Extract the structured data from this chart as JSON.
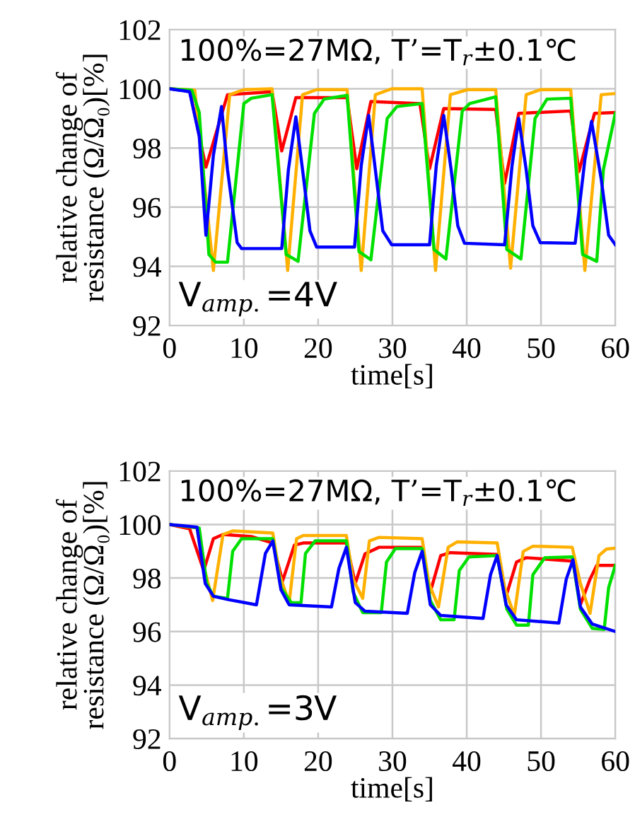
{
  "chart_data": [
    {
      "type": "line",
      "xlabel": "time[s]",
      "ylabel": "relative change of\nresistance (Ω/Ω₀)[%]",
      "annotations": [
        "100%=27MΩ, T’=T$_{r}$±0.1℃",
        "V$_{amp.}$=4V"
      ],
      "xlim": [
        0,
        60
      ],
      "ylim": [
        92,
        102
      ],
      "xticks": [
        0,
        10,
        20,
        30,
        40,
        50,
        60
      ],
      "yticks": [
        92,
        94,
        96,
        98,
        100,
        102
      ],
      "grid": true,
      "series": [
        {
          "color": "#ff0000",
          "x": [
            0,
            2.7,
            4.9,
            7.8,
            13.8,
            15.1,
            17,
            23.9,
            25.2,
            27.1,
            33.7,
            35,
            36.9,
            43.9,
            45.1,
            47,
            54,
            55.1,
            57.2,
            60
          ],
          "values": [
            100,
            99.95,
            97.35,
            99.8,
            99.9,
            97.9,
            99.7,
            99.7,
            97.3,
            99.57,
            99.5,
            97.3,
            99.33,
            99.3,
            96.8,
            99.17,
            99.25,
            97.2,
            99.17,
            99.2
          ]
        },
        {
          "color": "#ffb000",
          "x": [
            0,
            3.4,
            5.9,
            8.1,
            10,
            13.8,
            15.9,
            17.9,
            19.8,
            23.9,
            25.8,
            27.7,
            29.9,
            34,
            35.8,
            37.8,
            40.1,
            43.9,
            45.9,
            48,
            49.9,
            54,
            55.9,
            58.1,
            60
          ],
          "values": [
            100,
            99.95,
            93.86,
            99.8,
            99.97,
            100,
            93.86,
            99.8,
            99.97,
            99.97,
            93.86,
            99.8,
            100,
            100,
            93.86,
            99.8,
            99.97,
            99.97,
            93.94,
            99.8,
            99.97,
            99.97,
            93.86,
            99.8,
            99.84
          ]
        },
        {
          "color": "#00e000",
          "x": [
            0,
            3,
            4,
            5.3,
            6.2,
            7.8,
            10,
            11,
            13.8,
            15.7,
            17.3,
            19.5,
            20.8,
            23.9,
            25.5,
            27.1,
            29.3,
            30.6,
            34,
            35.6,
            37.2,
            39.4,
            40.4,
            43.9,
            45.4,
            47.3,
            49.2,
            50.8,
            54,
            55.6,
            57.5,
            58.4,
            60
          ],
          "values": [
            100,
            99.95,
            99.2,
            94.4,
            94.14,
            94.14,
            99.5,
            99.68,
            99.8,
            94.4,
            94.17,
            99.17,
            99.65,
            99.78,
            94.5,
            94.22,
            99.0,
            99.4,
            99.5,
            94.57,
            94.25,
            99.25,
            99.5,
            99.73,
            94.57,
            94.25,
            99.0,
            99.65,
            99.68,
            94.4,
            94.17,
            97.27,
            99.17
          ]
        },
        {
          "color": "#0000ff",
          "x": [
            0,
            2.7,
            4,
            4.9,
            5.9,
            7,
            7.8,
            9.1,
            9.7,
            15.1,
            16,
            17,
            17.9,
            18.9,
            19.8,
            24.9,
            25.8,
            26.8,
            27.7,
            28.7,
            29.9,
            35,
            35.9,
            36.9,
            37.9,
            38.8,
            39.7,
            45.1,
            46.1,
            47,
            48,
            48.9,
            49.9,
            54.6,
            55.9,
            56.8,
            58.1,
            59.1,
            60
          ],
          "values": [
            100,
            99.9,
            98.4,
            95.05,
            97.75,
            99.4,
            97.27,
            94.8,
            94.6,
            94.6,
            97.27,
            99.05,
            97.27,
            95.2,
            94.65,
            94.65,
            97.4,
            99.1,
            97.27,
            95.2,
            94.73,
            94.73,
            97.4,
            99.1,
            97.27,
            95.37,
            94.78,
            94.73,
            97.4,
            99.0,
            97.27,
            95.37,
            94.8,
            94.78,
            97.6,
            98.9,
            96.95,
            95.05,
            94.73
          ]
        }
      ]
    },
    {
      "type": "line",
      "xlabel": "time[s]",
      "ylabel": "relative change of\nresistance (Ω/Ω₀)[%]",
      "annotations": [
        "100%=27MΩ, T’=T$_{r}$±0.1℃",
        "V$_{amp.}$=3V"
      ],
      "xlim": [
        0,
        60
      ],
      "ylim": [
        92,
        102
      ],
      "xticks": [
        0,
        10,
        20,
        30,
        40,
        50,
        60
      ],
      "yticks": [
        92,
        94,
        96,
        98,
        100,
        102
      ],
      "grid": true,
      "series": [
        {
          "color": "#ff0000",
          "x": [
            0,
            2.7,
            4.6,
            5.9,
            7.2,
            11,
            13.9,
            15.2,
            16.8,
            18,
            23.8,
            25,
            26.3,
            28.2,
            34,
            35.1,
            36.5,
            37.8,
            44.1,
            45.3,
            46.7,
            48,
            54.3,
            55.3,
            56.6,
            57.5,
            60
          ],
          "values": [
            100,
            99.84,
            98.28,
            99.47,
            99.63,
            99.55,
            99.31,
            97.88,
            99.23,
            99.31,
            99.31,
            97.8,
            98.9,
            99.15,
            99.15,
            97.48,
            98.84,
            98.95,
            98.88,
            97.32,
            98.6,
            98.76,
            98.63,
            97.0,
            97.96,
            98.47,
            98.47
          ]
        },
        {
          "color": "#ffb000",
          "x": [
            0,
            3.7,
            4.6,
            5.8,
            7.2,
            8.5,
            13.9,
            14.8,
            16.1,
            17.1,
            18,
            23.8,
            24.7,
            26,
            26.9,
            28.2,
            34,
            34.9,
            36.2,
            37.5,
            38.7,
            44.1,
            45.1,
            46.4,
            47.6,
            48.9,
            54.2,
            55.3,
            56.6,
            57.8,
            58.8,
            60
          ],
          "values": [
            100,
            99.87,
            98.44,
            97.16,
            99.63,
            99.76,
            99.68,
            98.12,
            97.08,
            99.47,
            99.59,
            99.59,
            97.96,
            97.24,
            99.39,
            99.52,
            99.47,
            97.8,
            96.92,
            99.15,
            99.35,
            99.31,
            97.64,
            96.6,
            98.99,
            99.19,
            99.15,
            97.8,
            96.68,
            98.84,
            99.08,
            99.12
          ]
        },
        {
          "color": "#00e000",
          "x": [
            0,
            4,
            5,
            5.9,
            7.8,
            8.5,
            9.7,
            13.9,
            15,
            16.4,
            17.7,
            18.3,
            19.6,
            23.8,
            24.7,
            26,
            28.5,
            29.2,
            30.4,
            34,
            35.1,
            36.5,
            38.3,
            39,
            40.3,
            44.1,
            45.4,
            46.7,
            48.3,
            48.9,
            50.5,
            54.2,
            55.3,
            56.9,
            58.5,
            59.1,
            60
          ],
          "values": [
            100,
            99.87,
            97.8,
            97.32,
            97.24,
            99.0,
            99.47,
            99.47,
            97.64,
            97.08,
            97.08,
            98.92,
            99.39,
            99.39,
            97.48,
            96.71,
            96.71,
            98.6,
            99.1,
            99.1,
            97.16,
            96.44,
            96.44,
            98.28,
            98.79,
            98.84,
            96.84,
            96.24,
            96.24,
            98.12,
            98.76,
            98.79,
            96.84,
            96.12,
            96.08,
            97.64,
            98.47
          ]
        },
        {
          "color": "#0000ff",
          "x": [
            0,
            3.7,
            4.8,
            5.9,
            7.8,
            11.7,
            12.9,
            13.9,
            15,
            16.1,
            21.8,
            22.8,
            23.8,
            25,
            26.3,
            32,
            33,
            34,
            35.1,
            36.5,
            42.2,
            43.2,
            44.1,
            45.3,
            46.7,
            52.4,
            53.4,
            54.3,
            55.3,
            56.9,
            60
          ],
          "values": [
            100,
            99.9,
            97.8,
            97.32,
            97.2,
            97.0,
            98.92,
            99.39,
            97.56,
            97.0,
            96.92,
            98.36,
            99.15,
            97.08,
            96.76,
            96.68,
            98.2,
            99.0,
            97.0,
            96.6,
            96.49,
            98.12,
            98.84,
            97.0,
            96.44,
            96.32,
            97.96,
            98.68,
            96.92,
            96.28,
            96.0
          ]
        }
      ]
    }
  ]
}
